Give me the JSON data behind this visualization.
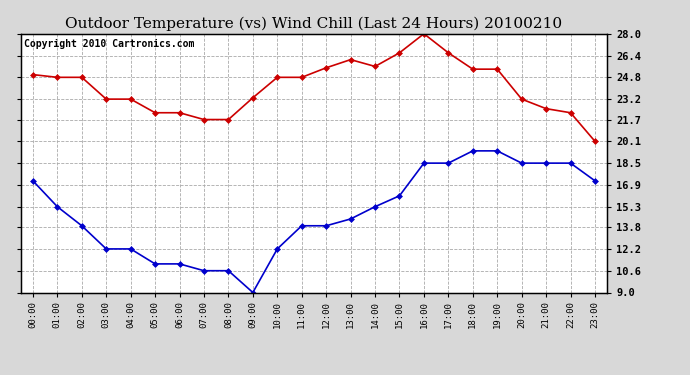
{
  "title": "Outdoor Temperature (vs) Wind Chill (Last 24 Hours) 20100210",
  "copyright": "Copyright 2010 Cartronics.com",
  "hours": [
    "00:00",
    "01:00",
    "02:00",
    "03:00",
    "04:00",
    "05:00",
    "06:00",
    "07:00",
    "08:00",
    "09:00",
    "10:00",
    "11:00",
    "12:00",
    "13:00",
    "14:00",
    "15:00",
    "16:00",
    "17:00",
    "18:00",
    "19:00",
    "20:00",
    "21:00",
    "22:00",
    "23:00"
  ],
  "temp": [
    25.0,
    24.8,
    24.8,
    23.2,
    23.2,
    22.2,
    22.2,
    21.7,
    21.7,
    23.3,
    24.8,
    24.8,
    25.5,
    26.1,
    25.6,
    26.6,
    28.0,
    26.6,
    25.4,
    25.4,
    23.2,
    22.5,
    22.2,
    20.1
  ],
  "windchill": [
    17.2,
    15.3,
    13.9,
    12.2,
    12.2,
    11.1,
    11.1,
    10.6,
    10.6,
    9.0,
    12.2,
    13.9,
    13.9,
    14.4,
    15.3,
    16.1,
    18.5,
    18.5,
    19.4,
    19.4,
    18.5,
    18.5,
    18.5,
    17.2
  ],
  "temp_color": "#cc0000",
  "windchill_color": "#0000cc",
  "marker": "D",
  "marker_size": 3,
  "ylim": [
    9.0,
    28.0
  ],
  "yticks": [
    9.0,
    10.6,
    12.2,
    13.8,
    15.3,
    16.9,
    18.5,
    20.1,
    21.7,
    23.2,
    24.8,
    26.4,
    28.0
  ],
  "grid_color": "#aaaaaa",
  "bg_color": "#d8d8d8",
  "plot_bg": "#ffffff",
  "title_fontsize": 11,
  "copyright_fontsize": 7
}
